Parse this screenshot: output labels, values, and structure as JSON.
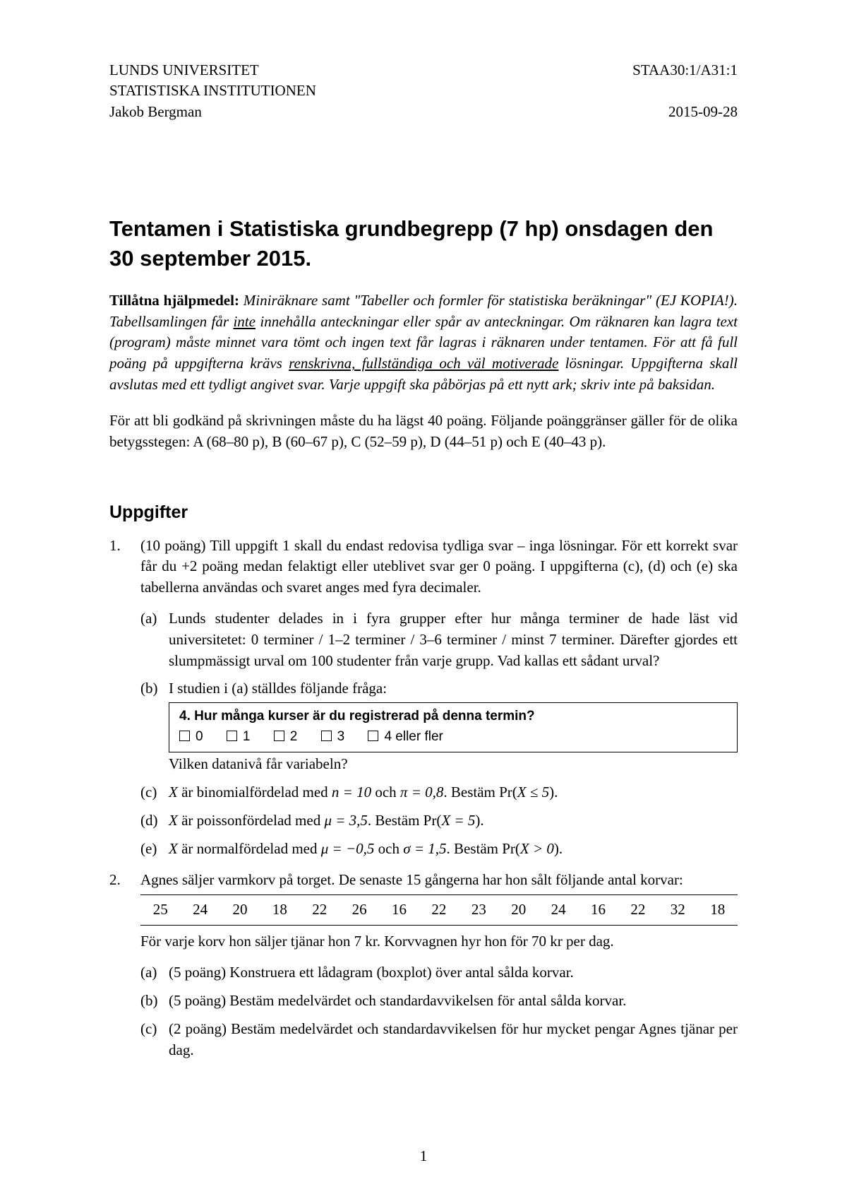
{
  "header": {
    "university": "LUNDS UNIVERSITET",
    "department": "STATISTISKA INSTITUTIONEN",
    "author": "Jakob Bergman",
    "course_code": "STAA30:1/A31:1",
    "date": "2015-09-28"
  },
  "title": "Tentamen i Statistiska grundbegrepp (7 hp) onsdagen den 30 september 2015.",
  "aids_label": "Tillåtna hjälpmedel:",
  "aids_text_1": " Miniräknare samt \"Tabeller och formler för statistiska beräkningar\" (EJ KOPIA!). Tabellsamlingen får ",
  "aids_underline_1": "inte",
  "aids_text_2": " innehålla anteckningar eller spår av anteckningar. Om räknaren kan lagra text (program) måste minnet vara tömt och ingen text får lagras i räknaren under tentamen. För att få full poäng på uppgifterna krävs ",
  "aids_underline_2": "renskrivna, fullständiga och väl motiverade",
  "aids_text_3": " lösningar. Uppgifterna skall avslutas med ett tydligt angivet svar. Varje uppgift ska påbörjas på ett nytt ark; skriv inte på baksidan.",
  "grading_text": "För att bli godkänd på skrivningen måste du ha lägst 40 poäng. Följande poänggränser gäller för de olika betygsstegen: A (68–80 p), B (60–67 p), C (52–59 p), D (44–51 p) och E (40–43 p).",
  "section_heading": "Uppgifter",
  "q1": {
    "num": "1.",
    "points": "(10 poäng) ",
    "lead_ital": "Till uppgift 1 skall du endast redovisa tydliga svar – inga lösningar",
    "lead_rest_1": ". För ett korrekt svar får du +2 poäng medan felaktigt eller uteblivet svar ger 0 poäng. I uppgifterna (c), (d) och (e) ska tabellerna användas och svaret anges med ",
    "lead_ital2": "fyra decimaler",
    "lead_rest_2": ".",
    "a": {
      "lett": "(a)",
      "text": "Lunds studenter delades in i fyra grupper efter hur många terminer de hade läst vid universitetet: 0 terminer / 1–2 terminer / 3–6 terminer / minst 7 terminer. Därefter gjordes ett slumpmässigt urval om 100 studenter från varje grupp. Vad kallas ett sådant urval?"
    },
    "b": {
      "lett": "(b)",
      "intro": "I studien i (a) ställdes följande fråga:",
      "box_title": "4. Hur många kurser är du registrerad på denna termin?",
      "options": [
        "0",
        "1",
        "2",
        "3",
        "4 eller fler"
      ],
      "after": "Vilken datanivå får variabeln?"
    },
    "c": {
      "lett": "(c)",
      "pre": "X",
      "text_1": " är binomialfördelad med ",
      "n_expr": "n = 10",
      "text_2": " och ",
      "pi_expr": "π = 0,8",
      "text_3": ". Bestäm Pr(",
      "cond": "X ≤ 5",
      "text_4": ")."
    },
    "d": {
      "lett": "(d)",
      "pre": "X",
      "text_1": " är poissonfördelad med ",
      "mu_expr": "μ = 3,5",
      "text_2": ". Bestäm Pr(",
      "cond": "X = 5",
      "text_3": ")."
    },
    "e": {
      "lett": "(e)",
      "pre": "X",
      "text_1": " är normalfördelad med ",
      "mu_expr": "μ = −0,5",
      "text_2": " och ",
      "sigma_expr": "σ = 1,5",
      "text_3": ". Bestäm Pr(",
      "cond": "X > 0",
      "text_4": ")."
    }
  },
  "q2": {
    "num": "2.",
    "intro": "Agnes säljer varmkorv på torget. De senaste 15 gångerna har hon sålt följande antal korvar:",
    "values": [
      "25",
      "24",
      "20",
      "18",
      "22",
      "26",
      "16",
      "22",
      "23",
      "20",
      "24",
      "16",
      "22",
      "32",
      "18"
    ],
    "after": "För varje korv hon säljer tjänar hon 7 kr. Korvvagnen hyr hon för 70 kr per dag.",
    "a": {
      "lett": "(a)",
      "text": "(5 poäng) Konstruera ett lådagram (boxplot) över antal sålda korvar."
    },
    "b": {
      "lett": "(b)",
      "text": "(5 poäng) Bestäm medelvärdet och standardavvikelsen för antal sålda korvar."
    },
    "c": {
      "lett": "(c)",
      "text": "(2 poäng) Bestäm medelvärdet och standardavvikelsen för hur mycket pengar Agnes tjänar per dag."
    }
  },
  "page_number": "1"
}
